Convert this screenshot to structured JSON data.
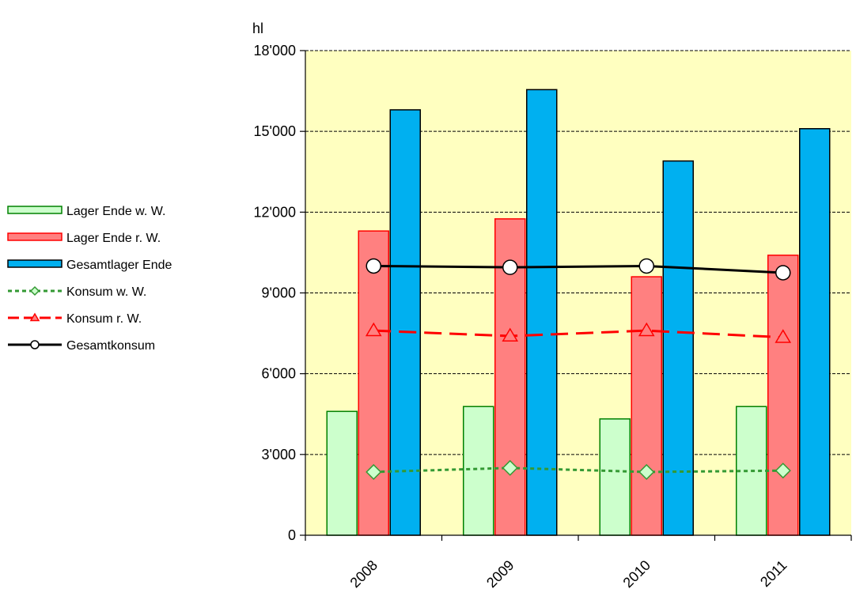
{
  "chart_data": {
    "type": "bar",
    "ylabel": "hl",
    "xlabel": "",
    "ylim": [
      0,
      18000
    ],
    "yticks": [
      0,
      3000,
      6000,
      9000,
      12000,
      15000,
      18000
    ],
    "ytick_labels": [
      "0",
      "3'000",
      "6'000",
      "9'000",
      "12'000",
      "15'000",
      "18'000"
    ],
    "categories": [
      "2008",
      "2009",
      "2010",
      "2011"
    ],
    "grid": true,
    "legend_position": "left",
    "plot_background": "#FFFFC0",
    "bar_series": [
      {
        "name": "Lager Ende w. W.",
        "values": [
          4600,
          4780,
          4320,
          4780
        ],
        "fill": "#CCFFCC",
        "stroke": "#008000"
      },
      {
        "name": "Lager Ende r. W.",
        "values": [
          11300,
          11750,
          9600,
          10400
        ],
        "fill": "#FF8080",
        "stroke": "#FF0000"
      },
      {
        "name": "Gesamtlager Ende",
        "values": [
          15800,
          16550,
          13900,
          15100
        ],
        "fill": "#00B0F0",
        "stroke": "#000000"
      }
    ],
    "line_series": [
      {
        "name": "Konsum w. W.",
        "values": [
          2350,
          2500,
          2350,
          2400
        ],
        "color": "#339933",
        "dash": "5,4",
        "marker": "diamond",
        "marker_fill": "#CCFFCC"
      },
      {
        "name": "Konsum r. W.",
        "values": [
          7600,
          7400,
          7600,
          7350
        ],
        "color": "#FF0000",
        "dash": "22,10",
        "marker": "triangle",
        "marker_fill": "#FF8080"
      },
      {
        "name": "Gesamtkonsum",
        "values": [
          10000,
          9950,
          10000,
          9750
        ],
        "color": "#000000",
        "dash": "",
        "marker": "circle",
        "marker_fill": "#FFFFFF"
      }
    ]
  }
}
